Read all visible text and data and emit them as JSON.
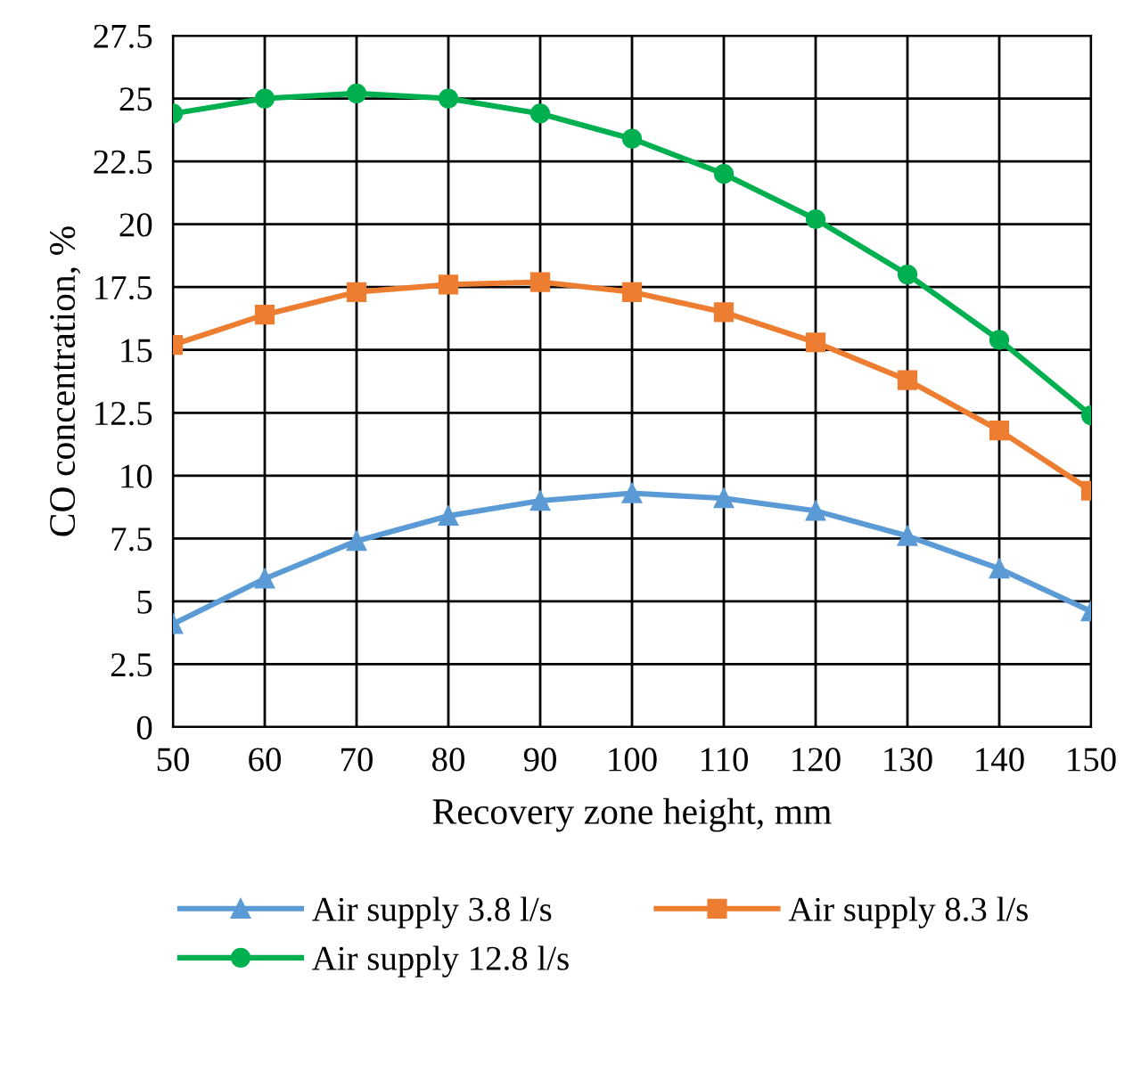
{
  "chart_data": {
    "type": "line",
    "xlabel": "Recovery zone height, mm",
    "ylabel": "CO concentration, %",
    "x": [
      50,
      60,
      70,
      80,
      90,
      100,
      110,
      120,
      130,
      140,
      150
    ],
    "series": [
      {
        "name": "Air supply 3.8 l/s",
        "color": "#5b9bd5",
        "marker": "triangle",
        "values": [
          4.1,
          5.9,
          7.4,
          8.4,
          9.0,
          9.3,
          9.1,
          8.6,
          7.6,
          6.3,
          4.6
        ]
      },
      {
        "name": "Air supply 8.3 l/s",
        "color": "#ed7d31",
        "marker": "square",
        "values": [
          15.2,
          16.4,
          17.3,
          17.6,
          17.7,
          17.3,
          16.5,
          15.3,
          13.8,
          11.8,
          9.4
        ]
      },
      {
        "name": "Air supply 12.8 l/s",
        "color": "#00b050",
        "marker": "circle",
        "values": [
          24.4,
          25.0,
          25.2,
          25.0,
          24.4,
          23.4,
          22.0,
          20.2,
          18.0,
          15.4,
          12.4
        ]
      }
    ],
    "xlim": [
      50,
      150
    ],
    "xticks": [
      50,
      60,
      70,
      80,
      90,
      100,
      110,
      120,
      130,
      140,
      150
    ],
    "ylim": [
      0,
      27.5
    ],
    "yticks": [
      0,
      2.5,
      5,
      7.5,
      10,
      12.5,
      15,
      17.5,
      20,
      22.5,
      25,
      27.5
    ],
    "grid": true,
    "legend": "bottom",
    "line_style": "solid"
  }
}
